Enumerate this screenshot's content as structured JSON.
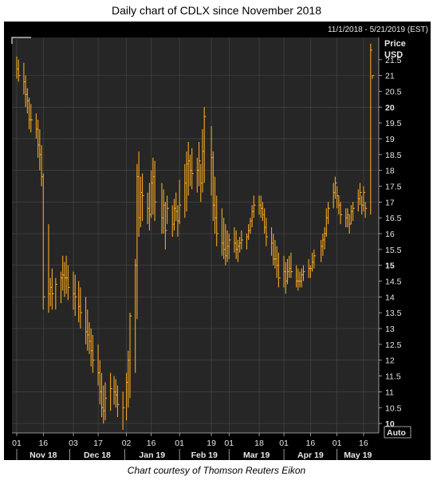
{
  "title": "Daily chart of CDLX since November 2018",
  "caption": "Chart courtesy of Thomson Reuters Eikon",
  "colors": {
    "background": "#000000",
    "plot_background": "#262626",
    "grid": "#4a4a4a",
    "bar": "#f5a623",
    "text": "#e6e6e6"
  },
  "chart_data": {
    "type": "ohlc",
    "date_range_label": "11/1/2018 - 5/21/2019 (EST)",
    "ylabel": "Price",
    "yunit": "USD",
    "ylim": [
      9.7,
      22.2
    ],
    "y_ticks": [
      "21.5",
      "21",
      "20.5",
      "20",
      "19.5",
      "19",
      "18.5",
      "18",
      "17.5",
      "17",
      "16.5",
      "16",
      "15.5",
      "15",
      "14.5",
      "14",
      "13.5",
      "13",
      "12.5",
      "12",
      "11.5",
      "11",
      "10.5",
      "10"
    ],
    "y_ticks_bold": [
      "20",
      "15",
      "10"
    ],
    "auto_label": "Auto",
    "x_day_ticks": [
      "01",
      "16",
      "03",
      "17",
      "02",
      "16",
      "01",
      "19",
      "01",
      "18",
      "01",
      "16",
      "01",
      "16"
    ],
    "x_month_labels": [
      "Nov 18",
      "Dec 18",
      "Jan 19",
      "Feb 19",
      "Mar 19",
      "Apr 19",
      "May 19"
    ],
    "x_range": [
      "2018-11-01",
      "2019-05-21"
    ],
    "tick_dates": [
      "2018-11-01",
      "2018-11-16",
      "2018-12-03",
      "2018-12-17",
      "2019-01-02",
      "2019-01-16",
      "2019-02-01",
      "2019-02-19",
      "2019-03-01",
      "2019-03-18",
      "2019-04-01",
      "2019-04-16",
      "2019-05-01",
      "2019-05-16"
    ],
    "month_dates": [
      "2018-11-01",
      "2018-12-01",
      "2019-01-01",
      "2019-02-01",
      "2019-03-01",
      "2019-04-01",
      "2019-05-01"
    ],
    "series": [
      {
        "dates": [
          "2018-11-01",
          "2018-11-02",
          "2018-11-05",
          "2018-11-06",
          "2018-11-07",
          "2018-11-08",
          "2018-11-09",
          "2018-11-12",
          "2018-11-13",
          "2018-11-14",
          "2018-11-15",
          "2018-11-16",
          "2018-11-19",
          "2018-11-20",
          "2018-11-21",
          "2018-11-23",
          "2018-11-26",
          "2018-11-27",
          "2018-11-28",
          "2018-11-29",
          "2018-11-30",
          "2018-12-03",
          "2018-12-04",
          "2018-12-06",
          "2018-12-07",
          "2018-12-10",
          "2018-12-11",
          "2018-12-12",
          "2018-12-13",
          "2018-12-14",
          "2018-12-17",
          "2018-12-18",
          "2018-12-19",
          "2018-12-20",
          "2018-12-21",
          "2018-12-24",
          "2018-12-26",
          "2018-12-27",
          "2018-12-28",
          "2018-12-31",
          "2019-01-02",
          "2019-01-03",
          "2019-01-04",
          "2019-01-07",
          "2019-01-08",
          "2019-01-09",
          "2019-01-10",
          "2019-01-11",
          "2019-01-14",
          "2019-01-15",
          "2019-01-16",
          "2019-01-17",
          "2019-01-18",
          "2019-01-22",
          "2019-01-23",
          "2019-01-24",
          "2019-01-25",
          "2019-01-28",
          "2019-01-29",
          "2019-01-30",
          "2019-01-31",
          "2019-02-01",
          "2019-02-04",
          "2019-02-05",
          "2019-02-06",
          "2019-02-07",
          "2019-02-08",
          "2019-02-11",
          "2019-02-12",
          "2019-02-13",
          "2019-02-14",
          "2019-02-15",
          "2019-02-19",
          "2019-02-20",
          "2019-02-21",
          "2019-02-22",
          "2019-02-25",
          "2019-02-26",
          "2019-02-27",
          "2019-02-28",
          "2019-03-01",
          "2019-03-04",
          "2019-03-05",
          "2019-03-06",
          "2019-03-07",
          "2019-03-08",
          "2019-03-11",
          "2019-03-12",
          "2019-03-13",
          "2019-03-14",
          "2019-03-15",
          "2019-03-18",
          "2019-03-19",
          "2019-03-20",
          "2019-03-21",
          "2019-03-22",
          "2019-03-25",
          "2019-03-26",
          "2019-03-27",
          "2019-03-28",
          "2019-03-29",
          "2019-04-01",
          "2019-04-02",
          "2019-04-03",
          "2019-04-04",
          "2019-04-05",
          "2019-04-08",
          "2019-04-09",
          "2019-04-10",
          "2019-04-11",
          "2019-04-12",
          "2019-04-15",
          "2019-04-16",
          "2019-04-17",
          "2019-04-18",
          "2019-04-22",
          "2019-04-23",
          "2019-04-24",
          "2019-04-25",
          "2019-04-26",
          "2019-04-29",
          "2019-04-30",
          "2019-05-01",
          "2019-05-02",
          "2019-05-03",
          "2019-05-06",
          "2019-05-07",
          "2019-05-08",
          "2019-05-09",
          "2019-05-10",
          "2019-05-13",
          "2019-05-14",
          "2019-05-15",
          "2019-05-16",
          "2019-05-17",
          "2019-05-20",
          "2019-05-21"
        ],
        "high": [
          21.6,
          21.5,
          21.4,
          21.0,
          20.6,
          20.3,
          20.1,
          19.8,
          19.6,
          19.3,
          18.8,
          17.9,
          16.3,
          14.6,
          14.9,
          14.6,
          14.8,
          15.3,
          15.1,
          15.3,
          15.0,
          14.8,
          14.7,
          14.5,
          14.3,
          14.0,
          13.6,
          13.2,
          13.0,
          12.8,
          12.5,
          12.0,
          11.6,
          11.2,
          11.3,
          11.6,
          11.5,
          11.4,
          11.2,
          11.0,
          11.6,
          12.3,
          13.5,
          15.2,
          18.2,
          18.6,
          17.8,
          17.9,
          17.3,
          17.6,
          18.0,
          18.4,
          18.3,
          17.6,
          17.4,
          17.0,
          17.2,
          16.9,
          17.1,
          17.3,
          16.9,
          17.7,
          18.2,
          18.6,
          18.9,
          18.5,
          18.7,
          18.4,
          18.9,
          18.2,
          19.3,
          20.0,
          19.4,
          18.6,
          17.8,
          17.2,
          16.8,
          16.5,
          16.3,
          16.1,
          16.0,
          16.2,
          16.1,
          15.8,
          15.9,
          16.1,
          16.0,
          16.3,
          16.5,
          16.9,
          17.2,
          17.2,
          17.2,
          17.0,
          16.8,
          16.5,
          16.2,
          16.0,
          15.8,
          15.6,
          15.4,
          15.3,
          15.1,
          15.2,
          15.3,
          15.4,
          15.0,
          14.9,
          14.8,
          14.9,
          15.0,
          15.2,
          15.0,
          15.4,
          15.5,
          15.8,
          16.0,
          16.2,
          16.8,
          17.0,
          17.6,
          17.8,
          17.5,
          17.2,
          17.0,
          16.8,
          16.8,
          16.6,
          16.9,
          17.0,
          17.4,
          17.6,
          17.2,
          17.5,
          17.0,
          22.0,
          21.0
        ],
        "low": [
          20.9,
          20.8,
          20.4,
          20.0,
          19.8,
          19.3,
          19.2,
          19.0,
          18.4,
          18.0,
          17.5,
          13.6,
          13.5,
          13.7,
          13.6,
          13.6,
          13.8,
          14.2,
          14.0,
          14.1,
          13.9,
          13.6,
          13.4,
          13.2,
          13.0,
          12.5,
          12.3,
          12.2,
          11.8,
          11.6,
          11.2,
          10.6,
          10.2,
          10.0,
          10.1,
          10.4,
          10.6,
          10.5,
          10.2,
          9.8,
          10.1,
          10.5,
          10.8,
          11.6,
          13.3,
          15.9,
          16.2,
          16.4,
          16.3,
          16.1,
          16.5,
          16.6,
          16.4,
          16.0,
          16.0,
          15.5,
          16.3,
          15.9,
          16.1,
          16.4,
          15.9,
          16.3,
          16.5,
          16.7,
          17.2,
          17.5,
          17.4,
          17.3,
          17.5,
          17.0,
          17.3,
          17.6,
          17.2,
          16.4,
          16.0,
          15.6,
          15.3,
          15.2,
          15.0,
          15.1,
          15.2,
          15.4,
          15.2,
          15.1,
          15.4,
          15.5,
          15.5,
          15.8,
          16.0,
          16.2,
          16.5,
          16.6,
          16.5,
          16.4,
          16.0,
          15.6,
          15.3,
          15.0,
          14.9,
          14.6,
          14.3,
          14.3,
          14.1,
          14.4,
          14.6,
          14.6,
          14.3,
          14.2,
          14.3,
          14.3,
          14.5,
          14.6,
          14.6,
          14.8,
          14.9,
          15.1,
          15.3,
          15.5,
          15.9,
          16.3,
          16.8,
          17.1,
          16.8,
          16.6,
          16.3,
          16.2,
          16.2,
          16.0,
          16.3,
          16.4,
          16.7,
          16.9,
          16.6,
          16.7,
          16.5,
          16.6,
          20.9
        ],
        "close": [
          21.2,
          21.0,
          20.8,
          20.4,
          20.2,
          19.6,
          19.6,
          19.3,
          18.8,
          18.5,
          17.8,
          14.0,
          14.1,
          14.3,
          14.1,
          14.4,
          14.6,
          14.7,
          14.6,
          14.6,
          14.3,
          14.1,
          14.0,
          13.7,
          13.5,
          12.9,
          12.8,
          12.6,
          12.3,
          12.0,
          11.6,
          11.0,
          10.5,
          10.4,
          10.8,
          11.1,
          11.0,
          10.9,
          10.6,
          10.5,
          11.3,
          12.0,
          13.4,
          15.0,
          17.8,
          16.5,
          17.3,
          17.2,
          16.8,
          16.6,
          17.6,
          17.8,
          17.0,
          16.5,
          16.9,
          16.1,
          16.8,
          16.3,
          16.8,
          16.7,
          16.4,
          16.9,
          17.6,
          18.2,
          18.3,
          18.0,
          17.9,
          18.0,
          18.3,
          17.6,
          18.6,
          19.7,
          18.4,
          16.9,
          16.5,
          16.0,
          15.7,
          15.5,
          15.3,
          15.6,
          15.8,
          15.7,
          15.5,
          15.6,
          15.7,
          15.8,
          15.9,
          16.1,
          16.4,
          16.7,
          16.9,
          16.9,
          16.8,
          16.6,
          16.2,
          15.9,
          15.7,
          15.2,
          15.2,
          15.0,
          14.6,
          14.8,
          14.5,
          14.8,
          14.9,
          14.8,
          14.5,
          14.5,
          14.5,
          14.7,
          14.8,
          14.9,
          14.9,
          15.1,
          15.3,
          15.6,
          15.8,
          16.0,
          16.5,
          16.8,
          17.3,
          17.6,
          17.2,
          16.9,
          16.6,
          16.5,
          16.6,
          16.3,
          16.7,
          16.8,
          17.1,
          17.3,
          16.9,
          17.3,
          16.8,
          21.8,
          21.0
        ]
      }
    ]
  }
}
